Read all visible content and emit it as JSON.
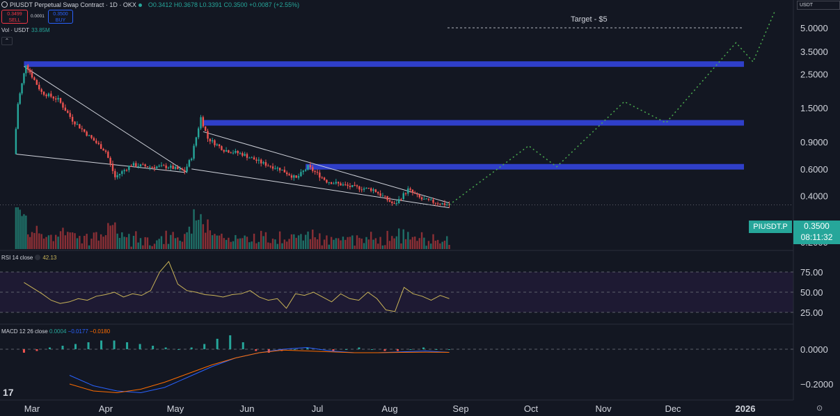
{
  "header": {
    "symbol": "PIUSDT Perpetual Swap Contract · 1D · OKX",
    "ohlc": "O0.3412 H0.3678 L0.3391 C0.3500 +0.0087 (+2.55%)"
  },
  "trade": {
    "sell_price": "0.3499",
    "sell_label": "SELL",
    "spread": "0.0001",
    "buy_price": "0.3500",
    "buy_label": "BUY"
  },
  "volume": {
    "label": "Vol · USDT",
    "value": "33.85M"
  },
  "currency": "USDT",
  "price_tag": {
    "symbol": "PIUSDT.P",
    "price": "0.3500",
    "countdown": "08:11:32"
  },
  "annotation": {
    "target_label": "Target - $5"
  },
  "rsi": {
    "label": "RSI 14 close",
    "value": "42.13"
  },
  "macd": {
    "label": "MACD 12 26 close",
    "v1": "0.0004",
    "v2": "−0.0177",
    "v3": "−0.0180"
  },
  "colors": {
    "bg": "#131722",
    "up": "#26a69a",
    "down": "#ef5350",
    "zone": "#2f3fc9",
    "projection": "#4caf50",
    "rsi_line": "#c9b458",
    "macd_line": "#2962ff",
    "signal_line": "#ff6d00"
  },
  "chart_data": {
    "type": "candlestick",
    "y_scale": "log",
    "price_axis_ticks": [
      "5.0000",
      "3.5000",
      "2.5000",
      "1.5000",
      "0.9000",
      "0.6000",
      "0.4000",
      "0.2000"
    ],
    "time_axis_ticks": [
      "Mar",
      "Apr",
      "May",
      "Jun",
      "Jul",
      "Aug",
      "Sep",
      "Oct",
      "Nov",
      "Dec",
      "2026"
    ],
    "rsi_axis_ticks": [
      "75.00",
      "50.00",
      "25.00"
    ],
    "macd_axis_ticks": [
      "0.0000",
      "−0.2000"
    ],
    "current_price": 0.35,
    "price_path": [
      {
        "date": "2025-02-20",
        "price": 0.75
      },
      {
        "date": "2025-02-22",
        "price": 1.6
      },
      {
        "date": "2025-02-26",
        "price": 2.9
      },
      {
        "date": "2025-03-05",
        "price": 1.9
      },
      {
        "date": "2025-03-12",
        "price": 1.7
      },
      {
        "date": "2025-03-18",
        "price": 1.25
      },
      {
        "date": "2025-03-25",
        "price": 0.98
      },
      {
        "date": "2025-04-01",
        "price": 0.78
      },
      {
        "date": "2025-04-05",
        "price": 0.53
      },
      {
        "date": "2025-04-12",
        "price": 0.64
      },
      {
        "date": "2025-04-20",
        "price": 0.62
      },
      {
        "date": "2025-04-28",
        "price": 0.62
      },
      {
        "date": "2025-05-05",
        "price": 0.58
      },
      {
        "date": "2025-05-08",
        "price": 0.72
      },
      {
        "date": "2025-05-12",
        "price": 1.3
      },
      {
        "date": "2025-05-15",
        "price": 0.95
      },
      {
        "date": "2025-05-22",
        "price": 0.8
      },
      {
        "date": "2025-05-30",
        "price": 0.75
      },
      {
        "date": "2025-06-08",
        "price": 0.65
      },
      {
        "date": "2025-06-15",
        "price": 0.6
      },
      {
        "date": "2025-06-22",
        "price": 0.52
      },
      {
        "date": "2025-06-27",
        "price": 0.62
      },
      {
        "date": "2025-07-05",
        "price": 0.5
      },
      {
        "date": "2025-07-15",
        "price": 0.46
      },
      {
        "date": "2025-07-25",
        "price": 0.44
      },
      {
        "date": "2025-08-03",
        "price": 0.35
      },
      {
        "date": "2025-08-09",
        "price": 0.44
      },
      {
        "date": "2025-08-15",
        "price": 0.38
      },
      {
        "date": "2025-08-22",
        "price": 0.36
      },
      {
        "date": "2025-08-27",
        "price": 0.35
      }
    ],
    "resistance_zones": [
      {
        "price": 2.9,
        "from": "2025-02-25"
      },
      {
        "price": 1.2,
        "from": "2025-05-13"
      },
      {
        "price": 0.62,
        "from": "2025-06-26"
      }
    ],
    "projection": [
      {
        "date": "2025-08-27",
        "price": 0.35
      },
      {
        "date": "2025-09-30",
        "price": 0.85
      },
      {
        "date": "2025-10-12",
        "price": 0.62
      },
      {
        "date": "2025-11-10",
        "price": 1.65
      },
      {
        "date": "2025-11-28",
        "price": 1.2
      },
      {
        "date": "2025-12-28",
        "price": 4.0
      },
      {
        "date": "2026-01-10",
        "price": 3.0
      },
      {
        "date": "2026-02-05",
        "price": 6.5
      }
    ],
    "target_price": 5.0,
    "rsi_path": [
      62,
      55,
      48,
      40,
      36,
      38,
      42,
      40,
      45,
      47,
      50,
      44,
      48,
      46,
      52,
      75,
      88,
      60,
      52,
      50,
      47,
      46,
      44,
      47,
      48,
      52,
      44,
      40,
      42,
      30,
      48,
      46,
      50,
      44,
      38,
      48,
      42,
      40,
      50,
      42,
      28,
      26,
      56,
      48,
      45,
      40,
      46,
      42
    ],
    "macd_hist": [
      -0.02,
      -0.01,
      0.01,
      0.02,
      0.03,
      0.04,
      0.05,
      0.05,
      0.04,
      0.03,
      0.02,
      0.01,
      0.0,
      0.01,
      0.03,
      0.06,
      0.08,
      0.04,
      -0.01,
      -0.02,
      -0.01,
      0.0,
      0.01,
      0.0,
      -0.01,
      0.0,
      0.01,
      0.0,
      -0.01,
      -0.01,
      0.0,
      0.01,
      0.0,
      0.0
    ],
    "macd_line": [
      -0.15,
      -0.21,
      -0.24,
      -0.25,
      -0.22,
      -0.16,
      -0.1,
      -0.05,
      -0.02,
      0.0,
      0.01,
      -0.01,
      -0.02,
      -0.02,
      -0.015,
      -0.01,
      -0.018
    ],
    "signal_line": [
      -0.2,
      -0.24,
      -0.25,
      -0.23,
      -0.19,
      -0.14,
      -0.09,
      -0.05,
      -0.02,
      -0.005,
      -0.01,
      -0.015,
      -0.02,
      -0.02,
      -0.018,
      -0.017,
      -0.018
    ]
  }
}
